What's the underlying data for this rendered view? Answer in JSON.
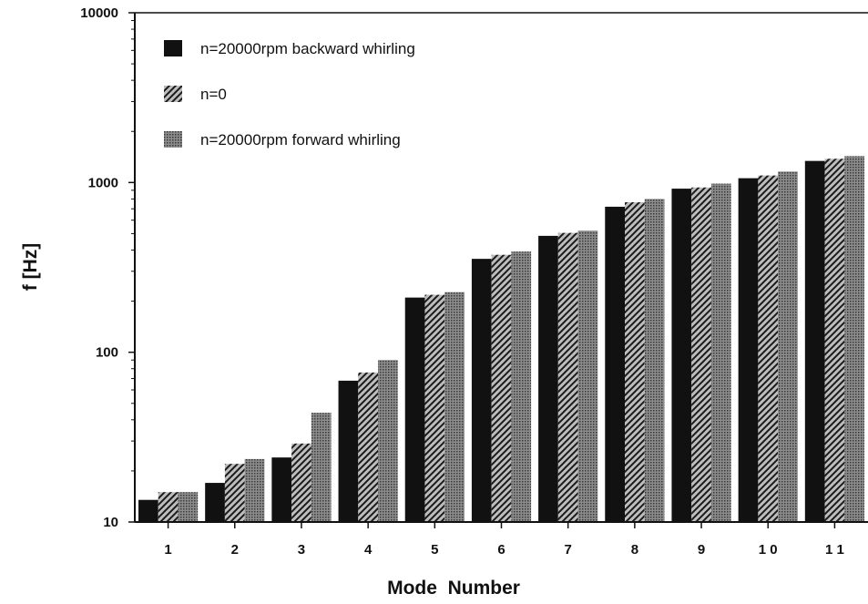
{
  "chart_data": {
    "type": "bar",
    "title": "",
    "xlabel": "Mode  Number",
    "ylabel": "f [Hz]",
    "yscale": "log",
    "ylim": [
      10,
      10000
    ],
    "y_ticks": [
      "10",
      "100",
      "1000",
      "10000"
    ],
    "categories": [
      "1",
      "2",
      "3",
      "4",
      "5",
      "6",
      "7",
      "8",
      "9",
      "1 0",
      "1 1"
    ],
    "legend_position": "top-left",
    "grid": false,
    "series": [
      {
        "name": "n=20000rpm backward whirling",
        "fill": "solid-black",
        "values": [
          13.5,
          17,
          24,
          68,
          210,
          355,
          485,
          720,
          920,
          1060,
          1340
        ]
      },
      {
        "name": "n=0",
        "fill": "diagonal-hatch",
        "values": [
          15,
          22,
          29,
          76,
          218,
          375,
          505,
          765,
          935,
          1100,
          1380
        ]
      },
      {
        "name": "n=20000rpm forward whirling",
        "fill": "dotted-gray",
        "values": [
          15,
          23.5,
          44,
          90,
          226,
          392,
          520,
          800,
          985,
          1160,
          1430
        ]
      }
    ]
  }
}
